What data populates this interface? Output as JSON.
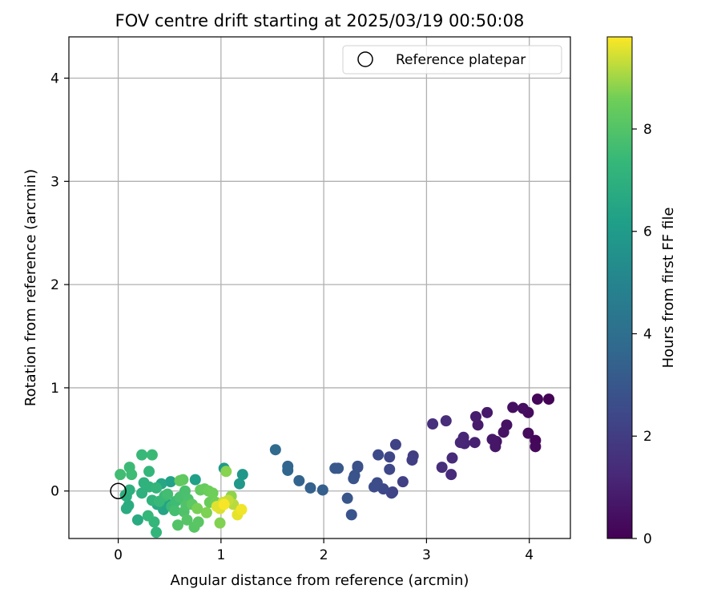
{
  "chart_data": {
    "type": "scatter",
    "title": "FOV centre drift starting at 2025/03/19 00:50:08",
    "xlabel": "Angular distance from reference (arcmin)",
    "ylabel": "Rotation from reference (arcmin)",
    "xlim": [
      -0.48,
      4.4
    ],
    "ylim": [
      -0.46,
      4.4
    ],
    "xticks": [
      0,
      1,
      2,
      3,
      4
    ],
    "yticks": [
      0,
      1,
      2,
      3,
      4
    ],
    "grid": true,
    "legend": {
      "placement": "upper-right",
      "entries": [
        "Reference platepar"
      ]
    },
    "reference_point": {
      "x": 0,
      "y": 0,
      "label": "Reference platepar"
    },
    "colorbar": {
      "label": "Hours from first FF file",
      "range": [
        0,
        9.8
      ],
      "ticks": [
        0,
        2,
        4,
        6,
        8
      ],
      "colormap": "viridis"
    },
    "series": [
      {
        "points": [
          {
            "x": 4.19,
            "y": 0.89,
            "c": 0.05
          },
          {
            "x": 4.08,
            "y": 0.89,
            "c": 0.15
          },
          {
            "x": 4.06,
            "y": 0.49,
            "c": 0.2
          },
          {
            "x": 4.06,
            "y": 0.43,
            "c": 0.25
          },
          {
            "x": 3.99,
            "y": 0.56,
            "c": 0.3
          },
          {
            "x": 3.99,
            "y": 0.76,
            "c": 0.35
          },
          {
            "x": 3.94,
            "y": 0.8,
            "c": 0.4
          },
          {
            "x": 3.84,
            "y": 0.81,
            "c": 0.45
          },
          {
            "x": 3.78,
            "y": 0.64,
            "c": 0.5
          },
          {
            "x": 3.75,
            "y": 0.57,
            "c": 0.55
          },
          {
            "x": 3.68,
            "y": 0.48,
            "c": 0.6
          },
          {
            "x": 3.67,
            "y": 0.43,
            "c": 0.65
          },
          {
            "x": 3.64,
            "y": 0.5,
            "c": 0.7
          },
          {
            "x": 3.59,
            "y": 0.76,
            "c": 0.75
          },
          {
            "x": 3.5,
            "y": 0.64,
            "c": 0.8
          },
          {
            "x": 3.48,
            "y": 0.72,
            "c": 0.9
          },
          {
            "x": 3.47,
            "y": 0.47,
            "c": 1.0
          },
          {
            "x": 3.37,
            "y": 0.46,
            "c": 1.1
          },
          {
            "x": 3.36,
            "y": 0.52,
            "c": 1.15
          },
          {
            "x": 3.33,
            "y": 0.47,
            "c": 1.2
          },
          {
            "x": 3.25,
            "y": 0.32,
            "c": 1.3
          },
          {
            "x": 3.24,
            "y": 0.16,
            "c": 1.35
          },
          {
            "x": 3.19,
            "y": 0.68,
            "c": 1.4
          },
          {
            "x": 3.15,
            "y": 0.23,
            "c": 1.45
          },
          {
            "x": 3.06,
            "y": 0.65,
            "c": 1.5
          },
          {
            "x": 2.87,
            "y": 0.34,
            "c": 2.0
          },
          {
            "x": 2.86,
            "y": 0.3,
            "c": 2.05
          },
          {
            "x": 2.77,
            "y": 0.09,
            "c": 2.1
          },
          {
            "x": 2.7,
            "y": 0.45,
            "c": 2.2
          },
          {
            "x": 2.67,
            "y": -0.01,
            "c": 2.25
          },
          {
            "x": 2.66,
            "y": -0.02,
            "c": 2.3
          },
          {
            "x": 2.64,
            "y": 0.33,
            "c": 2.35
          },
          {
            "x": 2.64,
            "y": 0.21,
            "c": 2.4
          },
          {
            "x": 2.58,
            "y": 0.02,
            "c": 2.45
          },
          {
            "x": 2.53,
            "y": 0.35,
            "c": 2.5
          },
          {
            "x": 2.52,
            "y": 0.08,
            "c": 2.55
          },
          {
            "x": 2.49,
            "y": 0.04,
            "c": 2.6
          },
          {
            "x": 2.33,
            "y": 0.24,
            "c": 2.7
          },
          {
            "x": 2.33,
            "y": 0.23,
            "c": 2.75
          },
          {
            "x": 2.3,
            "y": 0.15,
            "c": 2.8
          },
          {
            "x": 2.29,
            "y": 0.12,
            "c": 2.85
          },
          {
            "x": 2.27,
            "y": -0.23,
            "c": 2.9
          },
          {
            "x": 2.23,
            "y": -0.07,
            "c": 2.95
          },
          {
            "x": 2.14,
            "y": 0.22,
            "c": 3.0
          },
          {
            "x": 2.11,
            "y": 0.22,
            "c": 3.05
          },
          {
            "x": 1.99,
            "y": 0.01,
            "c": 3.3
          },
          {
            "x": 1.87,
            "y": 0.03,
            "c": 3.4
          },
          {
            "x": 1.76,
            "y": 0.1,
            "c": 3.5
          },
          {
            "x": 1.65,
            "y": 0.24,
            "c": 3.6
          },
          {
            "x": 1.65,
            "y": 0.2,
            "c": 3.65
          },
          {
            "x": 1.53,
            "y": 0.4,
            "c": 3.8
          },
          {
            "x": 1.21,
            "y": 0.16,
            "c": 5.8
          },
          {
            "x": 1.18,
            "y": 0.07,
            "c": 5.85
          },
          {
            "x": 1.03,
            "y": 0.22,
            "c": 5.9
          },
          {
            "x": 0.75,
            "y": 0.11,
            "c": 6.2
          },
          {
            "x": 0.51,
            "y": 0.09,
            "c": 6.3
          },
          {
            "x": 0.47,
            "y": -0.12,
            "c": 6.4
          },
          {
            "x": 0.44,
            "y": -0.18,
            "c": 6.45
          },
          {
            "x": 0.42,
            "y": 0.07,
            "c": 6.5
          },
          {
            "x": 0.38,
            "y": -0.13,
            "c": 6.6
          },
          {
            "x": 0.19,
            "y": -0.28,
            "c": 6.7
          },
          {
            "x": 0.08,
            "y": -0.17,
            "c": 6.75
          },
          {
            "x": 0.1,
            "y": -0.14,
            "c": 6.8
          },
          {
            "x": 0.08,
            "y": -0.05,
            "c": 6.85
          },
          {
            "x": 0.07,
            "y": -0.04,
            "c": 6.9
          },
          {
            "x": 0.11,
            "y": 0.01,
            "c": 6.95
          },
          {
            "x": 0.23,
            "y": -0.02,
            "c": 7.0
          },
          {
            "x": 0.25,
            "y": 0.08,
            "c": 7.05
          },
          {
            "x": 0.3,
            "y": 0.04,
            "c": 7.1
          },
          {
            "x": 0.33,
            "y": -0.09,
            "c": 7.15
          },
          {
            "x": 0.37,
            "y": 0.03,
            "c": 7.2
          },
          {
            "x": 0.37,
            "y": -0.4,
            "c": 7.25
          },
          {
            "x": 0.35,
            "y": -0.3,
            "c": 7.3
          },
          {
            "x": 0.29,
            "y": -0.24,
            "c": 7.35
          },
          {
            "x": 0.4,
            "y": -0.1,
            "c": 7.4
          },
          {
            "x": 0.45,
            "y": -0.05,
            "c": 7.45
          },
          {
            "x": 0.52,
            "y": -0.15,
            "c": 7.5
          },
          {
            "x": 0.56,
            "y": -0.1,
            "c": 7.55
          },
          {
            "x": 0.3,
            "y": 0.19,
            "c": 7.3
          },
          {
            "x": 0.23,
            "y": 0.35,
            "c": 7.4
          },
          {
            "x": 0.33,
            "y": 0.35,
            "c": 7.45
          },
          {
            "x": 0.11,
            "y": 0.23,
            "c": 7.5
          },
          {
            "x": 0.13,
            "y": 0.16,
            "c": 7.55
          },
          {
            "x": 0.02,
            "y": 0.16,
            "c": 7.6
          },
          {
            "x": 0.48,
            "y": -0.03,
            "c": 7.65
          },
          {
            "x": 0.55,
            "y": -0.19,
            "c": 7.7
          },
          {
            "x": 0.6,
            "y": -0.06,
            "c": 7.75
          },
          {
            "x": 0.65,
            "y": 0.0,
            "c": 7.8
          },
          {
            "x": 0.68,
            "y": -0.08,
            "c": 7.85
          },
          {
            "x": 0.64,
            "y": -0.2,
            "c": 7.9
          },
          {
            "x": 0.66,
            "y": -0.14,
            "c": 7.95
          },
          {
            "x": 0.58,
            "y": -0.33,
            "c": 8.0
          },
          {
            "x": 0.67,
            "y": -0.28,
            "c": 8.05
          },
          {
            "x": 0.74,
            "y": -0.35,
            "c": 8.1
          },
          {
            "x": 0.78,
            "y": -0.3,
            "c": 8.15
          },
          {
            "x": 0.72,
            "y": -0.13,
            "c": 8.2
          },
          {
            "x": 0.63,
            "y": 0.11,
            "c": 8.25
          },
          {
            "x": 0.6,
            "y": 0.1,
            "c": 8.3
          },
          {
            "x": 0.8,
            "y": 0.01,
            "c": 8.35
          },
          {
            "x": 0.84,
            "y": 0.02,
            "c": 8.4
          },
          {
            "x": 0.89,
            "y": -0.11,
            "c": 8.45
          },
          {
            "x": 0.88,
            "y": 0.0,
            "c": 8.5
          },
          {
            "x": 0.92,
            "y": -0.02,
            "c": 8.55
          },
          {
            "x": 0.95,
            "y": -0.11,
            "c": 8.6
          },
          {
            "x": 0.77,
            "y": -0.17,
            "c": 8.65
          },
          {
            "x": 0.86,
            "y": -0.21,
            "c": 8.7
          },
          {
            "x": 0.99,
            "y": -0.31,
            "c": 8.75
          },
          {
            "x": 1.05,
            "y": 0.19,
            "c": 8.8
          },
          {
            "x": 1.1,
            "y": -0.05,
            "c": 8.85
          },
          {
            "x": 1.12,
            "y": -0.13,
            "c": 9.2
          },
          {
            "x": 1.07,
            "y": -0.09,
            "c": 9.3
          },
          {
            "x": 1.02,
            "y": -0.11,
            "c": 9.4
          },
          {
            "x": 0.99,
            "y": -0.17,
            "c": 9.5
          },
          {
            "x": 0.96,
            "y": -0.15,
            "c": 9.55
          },
          {
            "x": 1.16,
            "y": -0.23,
            "c": 9.6
          },
          {
            "x": 1.2,
            "y": -0.18,
            "c": 9.7
          },
          {
            "x": 1.03,
            "y": -0.13,
            "c": 9.75
          }
        ]
      }
    ]
  }
}
